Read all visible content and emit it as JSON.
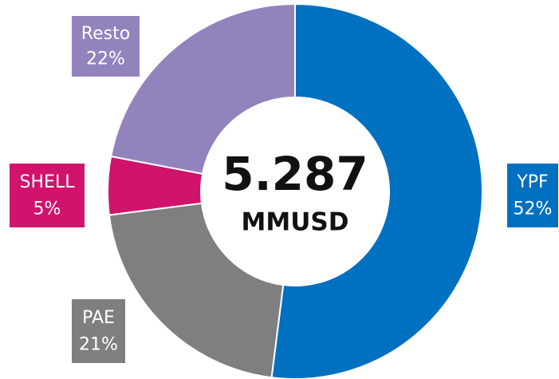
{
  "chart_data": {
    "type": "donut",
    "categories": [
      "YPF",
      "PAE",
      "SHELL",
      "Resto"
    ],
    "values": [
      52,
      21,
      5,
      22
    ],
    "value_labels": [
      "52%",
      "21%",
      "5%",
      "22%"
    ],
    "colors": [
      "#0070c0",
      "#7f7f7f",
      "#d0136c",
      "#9383bd"
    ],
    "annotations": [
      "5.287",
      "MMUSD"
    ]
  }
}
